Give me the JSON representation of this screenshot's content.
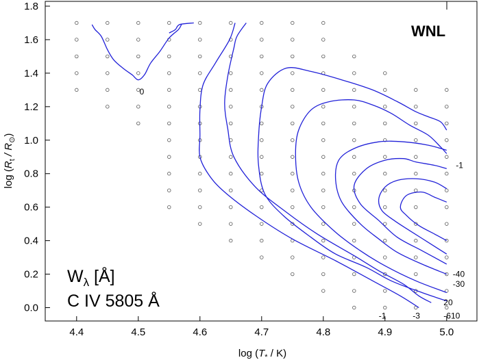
{
  "chart_data": {
    "type": "contour",
    "title": "WNL",
    "xlabel_parts": [
      "log (",
      "T",
      "*",
      " / K)"
    ],
    "ylabel_parts": [
      "log (",
      "R",
      "t",
      " / R",
      "⊙",
      ")"
    ],
    "annotation_line1": [
      "W",
      "λ",
      " [Å]"
    ],
    "annotation_line2": "C IV 5805 Å",
    "xlim": [
      4.35,
      5.05
    ],
    "ylim": [
      -0.08,
      1.8
    ],
    "xticks": [
      {
        "v": 4.4,
        "label": "4.4"
      },
      {
        "v": 4.5,
        "label": "4.5"
      },
      {
        "v": 4.6,
        "label": "4.6"
      },
      {
        "v": 4.7,
        "label": "4.7"
      },
      {
        "v": 4.8,
        "label": "4.8"
      },
      {
        "v": 4.9,
        "label": "4.9"
      },
      {
        "v": 5.0,
        "label": "5.0"
      }
    ],
    "yticks": [
      {
        "v": 0.0,
        "label": "0.0"
      },
      {
        "v": 0.2,
        "label": "0.2"
      },
      {
        "v": 0.4,
        "label": "0.4"
      },
      {
        "v": 0.6,
        "label": "0.6"
      },
      {
        "v": 0.8,
        "label": "0.8"
      },
      {
        "v": 1.0,
        "label": "1.0"
      },
      {
        "v": 1.2,
        "label": "1.2"
      },
      {
        "v": 1.4,
        "label": "1.4"
      },
      {
        "v": 1.6,
        "label": "1.6"
      },
      {
        "v": 1.8,
        "label": "1.8"
      }
    ],
    "grid_columns": [
      {
        "x": 4.4,
        "ys": [
          1.3,
          1.4,
          1.5,
          1.6,
          1.7
        ]
      },
      {
        "x": 4.45,
        "ys": [
          1.2,
          1.3,
          1.4,
          1.5,
          1.6,
          1.7
        ]
      },
      {
        "x": 4.5,
        "ys": [
          1.1,
          1.2,
          1.3,
          1.4,
          1.5,
          1.6,
          1.7
        ]
      },
      {
        "x": 4.55,
        "ys": [
          0.6,
          0.7,
          0.8,
          0.9,
          1.0,
          1.1,
          1.2,
          1.3,
          1.4,
          1.5,
          1.6,
          1.7
        ]
      },
      {
        "x": 4.6,
        "ys": [
          0.5,
          0.6,
          0.7,
          0.8,
          0.9,
          1.0,
          1.1,
          1.2,
          1.3,
          1.4,
          1.5,
          1.6,
          1.7
        ]
      },
      {
        "x": 4.65,
        "ys": [
          0.4,
          0.5,
          0.6,
          0.7,
          0.8,
          0.9,
          1.0,
          1.1,
          1.2,
          1.3,
          1.4,
          1.5,
          1.6,
          1.7
        ]
      },
      {
        "x": 4.7,
        "ys": [
          0.3,
          0.4,
          0.5,
          0.6,
          0.7,
          0.8,
          0.9,
          1.0,
          1.1,
          1.2,
          1.3,
          1.4,
          1.5,
          1.6,
          1.7
        ]
      },
      {
        "x": 4.75,
        "ys": [
          0.2,
          0.3,
          0.4,
          0.5,
          0.6,
          0.7,
          0.8,
          0.9,
          1.0,
          1.1,
          1.2,
          1.3,
          1.4,
          1.5,
          1.6,
          1.7
        ]
      },
      {
        "x": 4.8,
        "ys": [
          0.1,
          0.2,
          0.3,
          0.4,
          0.5,
          0.6,
          0.7,
          0.8,
          0.9,
          1.0,
          1.1,
          1.2,
          1.3,
          1.4,
          1.5,
          1.6,
          1.7
        ]
      },
      {
        "x": 4.85,
        "ys": [
          0.0,
          0.1,
          0.2,
          0.3,
          0.4,
          0.5,
          0.6,
          0.7,
          0.8,
          0.9,
          1.0,
          1.1,
          1.2,
          1.3,
          1.4,
          1.5
        ]
      },
      {
        "x": 4.9,
        "ys": [
          0.0,
          0.1,
          0.2,
          0.3,
          0.4,
          0.5,
          0.6,
          0.7,
          0.8,
          0.9,
          1.0,
          1.1,
          1.2,
          1.3,
          1.4
        ]
      },
      {
        "x": 4.95,
        "ys": [
          0.0,
          0.1,
          0.2,
          0.3,
          0.4,
          0.5,
          0.6,
          0.7,
          0.8,
          0.9,
          1.0,
          1.1,
          1.2,
          1.3
        ]
      },
      {
        "x": 5.0,
        "ys": [
          0.0,
          0.1,
          0.2,
          0.3,
          0.4,
          0.5,
          0.6,
          0.7,
          0.8,
          0.9,
          1.0,
          1.1,
          1.2,
          1.3
        ]
      }
    ],
    "contours": [
      {
        "points": [
          [
            4.425,
            1.69
          ],
          [
            4.43,
            1.66
          ],
          [
            4.44,
            1.62
          ],
          [
            4.45,
            1.54
          ],
          [
            4.46,
            1.48
          ],
          [
            4.475,
            1.43
          ],
          [
            4.49,
            1.39
          ],
          [
            4.5,
            1.36
          ],
          [
            4.51,
            1.39
          ],
          [
            4.52,
            1.46
          ],
          [
            4.535,
            1.53
          ],
          [
            4.55,
            1.61
          ],
          [
            4.565,
            1.66
          ],
          [
            4.57,
            1.69
          ]
        ]
      },
      {
        "points": [
          [
            4.55,
            1.64
          ],
          [
            4.56,
            1.66
          ],
          [
            4.567,
            1.69
          ],
          [
            4.59,
            1.7
          ]
        ]
      },
      {
        "points": [
          [
            4.657,
            1.7
          ],
          [
            4.648,
            1.6
          ],
          [
            4.625,
            1.46
          ],
          [
            4.605,
            1.33
          ],
          [
            4.6,
            1.18
          ],
          [
            4.6,
            1.03
          ],
          [
            4.6,
            0.9
          ],
          [
            4.615,
            0.79
          ],
          [
            4.64,
            0.69
          ],
          [
            4.69,
            0.55
          ],
          [
            4.75,
            0.41
          ],
          [
            4.82,
            0.28
          ],
          [
            4.88,
            0.16
          ],
          [
            4.925,
            0.07
          ],
          [
            4.955,
            0.0
          ]
        ]
      },
      {
        "points": [
          [
            4.675,
            1.7
          ],
          [
            4.66,
            1.62
          ],
          [
            4.655,
            1.55
          ],
          [
            4.645,
            1.38
          ],
          [
            4.64,
            1.22
          ],
          [
            4.645,
            1.07
          ],
          [
            4.655,
            0.9
          ],
          [
            4.69,
            0.72
          ],
          [
            4.74,
            0.57
          ],
          [
            4.79,
            0.44
          ],
          [
            4.85,
            0.31
          ],
          [
            4.89,
            0.22
          ],
          [
            4.93,
            0.14
          ],
          [
            4.955,
            0.07
          ],
          [
            4.975,
            0.03
          ]
        ]
      },
      {
        "points": [
          [
            5.0,
            0.04
          ],
          [
            4.96,
            0.09
          ],
          [
            4.91,
            0.16
          ],
          [
            4.87,
            0.24
          ],
          [
            4.82,
            0.32
          ],
          [
            4.78,
            0.42
          ],
          [
            4.735,
            0.55
          ],
          [
            4.705,
            0.68
          ],
          [
            4.695,
            0.85
          ],
          [
            4.695,
            1.02
          ],
          [
            4.7,
            1.2
          ],
          [
            4.71,
            1.34
          ],
          [
            4.74,
            1.43
          ],
          [
            4.78,
            1.41
          ],
          [
            4.83,
            1.36
          ],
          [
            4.88,
            1.3
          ],
          [
            4.92,
            1.23
          ],
          [
            4.95,
            1.17
          ],
          [
            4.97,
            1.14
          ],
          [
            4.99,
            1.11
          ],
          [
            5.0,
            1.06
          ]
        ]
      },
      {
        "points": [
          [
            5.0,
            0.09
          ],
          [
            4.95,
            0.16
          ],
          [
            4.9,
            0.25
          ],
          [
            4.86,
            0.34
          ],
          [
            4.82,
            0.45
          ],
          [
            4.78,
            0.6
          ],
          [
            4.76,
            0.75
          ],
          [
            4.755,
            0.92
          ],
          [
            4.76,
            1.06
          ],
          [
            4.78,
            1.18
          ],
          [
            4.81,
            1.23
          ],
          [
            4.85,
            1.24
          ],
          [
            4.88,
            1.21
          ],
          [
            4.91,
            1.16
          ],
          [
            4.94,
            1.09
          ],
          [
            4.97,
            1.03
          ],
          [
            4.99,
            0.96
          ],
          [
            5.0,
            0.92
          ]
        ]
      },
      {
        "points": [
          [
            5.0,
            0.2
          ],
          [
            4.96,
            0.26
          ],
          [
            4.92,
            0.33
          ],
          [
            4.89,
            0.41
          ],
          [
            4.86,
            0.5
          ],
          [
            4.83,
            0.63
          ],
          [
            4.82,
            0.76
          ],
          [
            4.825,
            0.88
          ],
          [
            4.85,
            0.95
          ],
          [
            4.89,
            0.99
          ],
          [
            4.93,
            0.99
          ],
          [
            4.97,
            0.97
          ],
          [
            5.0,
            0.94
          ]
        ]
      },
      {
        "points": [
          [
            5.0,
            0.26
          ],
          [
            4.96,
            0.34
          ],
          [
            4.92,
            0.42
          ],
          [
            4.89,
            0.52
          ],
          [
            4.86,
            0.62
          ],
          [
            4.85,
            0.73
          ],
          [
            4.87,
            0.83
          ],
          [
            4.9,
            0.88
          ],
          [
            4.93,
            0.89
          ],
          [
            4.95,
            0.87
          ],
          [
            4.98,
            0.85
          ],
          [
            5.0,
            0.83
          ]
        ]
      },
      {
        "points": [
          [
            5.0,
            0.71
          ],
          [
            4.98,
            0.75
          ],
          [
            4.95,
            0.77
          ],
          [
            4.92,
            0.76
          ],
          [
            4.9,
            0.72
          ],
          [
            4.89,
            0.65
          ],
          [
            4.895,
            0.58
          ],
          [
            4.915,
            0.52
          ],
          [
            4.94,
            0.46
          ],
          [
            4.97,
            0.39
          ],
          [
            5.0,
            0.32
          ]
        ]
      },
      {
        "points": [
          [
            5.0,
            0.63
          ],
          [
            4.98,
            0.66
          ],
          [
            4.96,
            0.69
          ],
          [
            4.935,
            0.67
          ],
          [
            4.925,
            0.6
          ],
          [
            4.935,
            0.55
          ],
          [
            4.955,
            0.49
          ],
          [
            4.98,
            0.44
          ],
          [
            5.0,
            0.4
          ]
        ]
      }
    ],
    "contour_labels": [
      {
        "text": "0",
        "x": 4.502,
        "y": 1.29
      },
      {
        "text": "-1",
        "x": 5.015,
        "y": 0.85
      },
      {
        "text": "-40",
        "x": 5.01,
        "y": 0.2
      },
      {
        "text": "-30",
        "x": 5.01,
        "y": 0.14
      },
      {
        "text": "20",
        "x": 4.995,
        "y": 0.03
      },
      {
        "text": "-1",
        "x": 4.89,
        "y": -0.05
      },
      {
        "text": "-3",
        "x": 4.945,
        "y": -0.05
      },
      {
        "text": "-610",
        "x": 4.995,
        "y": -0.05
      }
    ],
    "colors": {
      "contour": "#2020d8",
      "axis": "#000000",
      "grid_marker": "#555555"
    }
  }
}
